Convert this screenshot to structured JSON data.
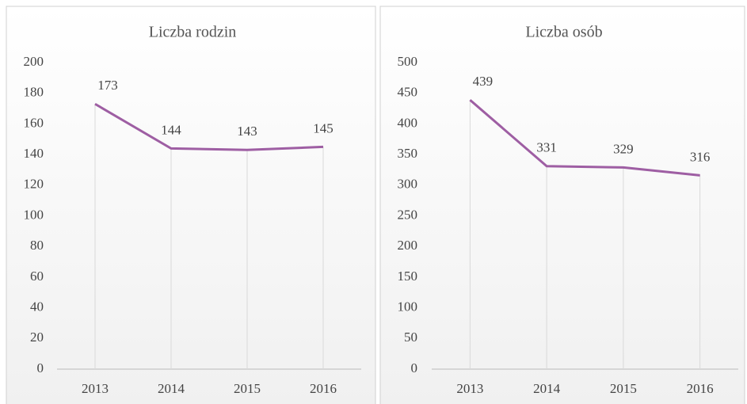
{
  "chart_data": [
    {
      "type": "line",
      "title": "Liczba rodzin",
      "categories": [
        "2013",
        "2014",
        "2015",
        "2016"
      ],
      "series": [
        {
          "name": "Liczba rodzin",
          "color": "#9e5ea3",
          "values": [
            173,
            144,
            143,
            145
          ]
        }
      ],
      "ylim": [
        0,
        200
      ],
      "yticks": [
        0,
        20,
        40,
        60,
        80,
        100,
        120,
        140,
        160,
        180,
        200
      ],
      "grid": false
    },
    {
      "type": "line",
      "title": "Liczba osób",
      "categories": [
        "2013",
        "2014",
        "2015",
        "2016"
      ],
      "series": [
        {
          "name": "Liczba osób",
          "color": "#9e5ea3",
          "values": [
            439,
            331,
            329,
            316
          ]
        }
      ],
      "ylim": [
        0,
        500
      ],
      "yticks": [
        0,
        50,
        100,
        150,
        200,
        250,
        300,
        350,
        400,
        450,
        500
      ],
      "grid": false
    }
  ]
}
